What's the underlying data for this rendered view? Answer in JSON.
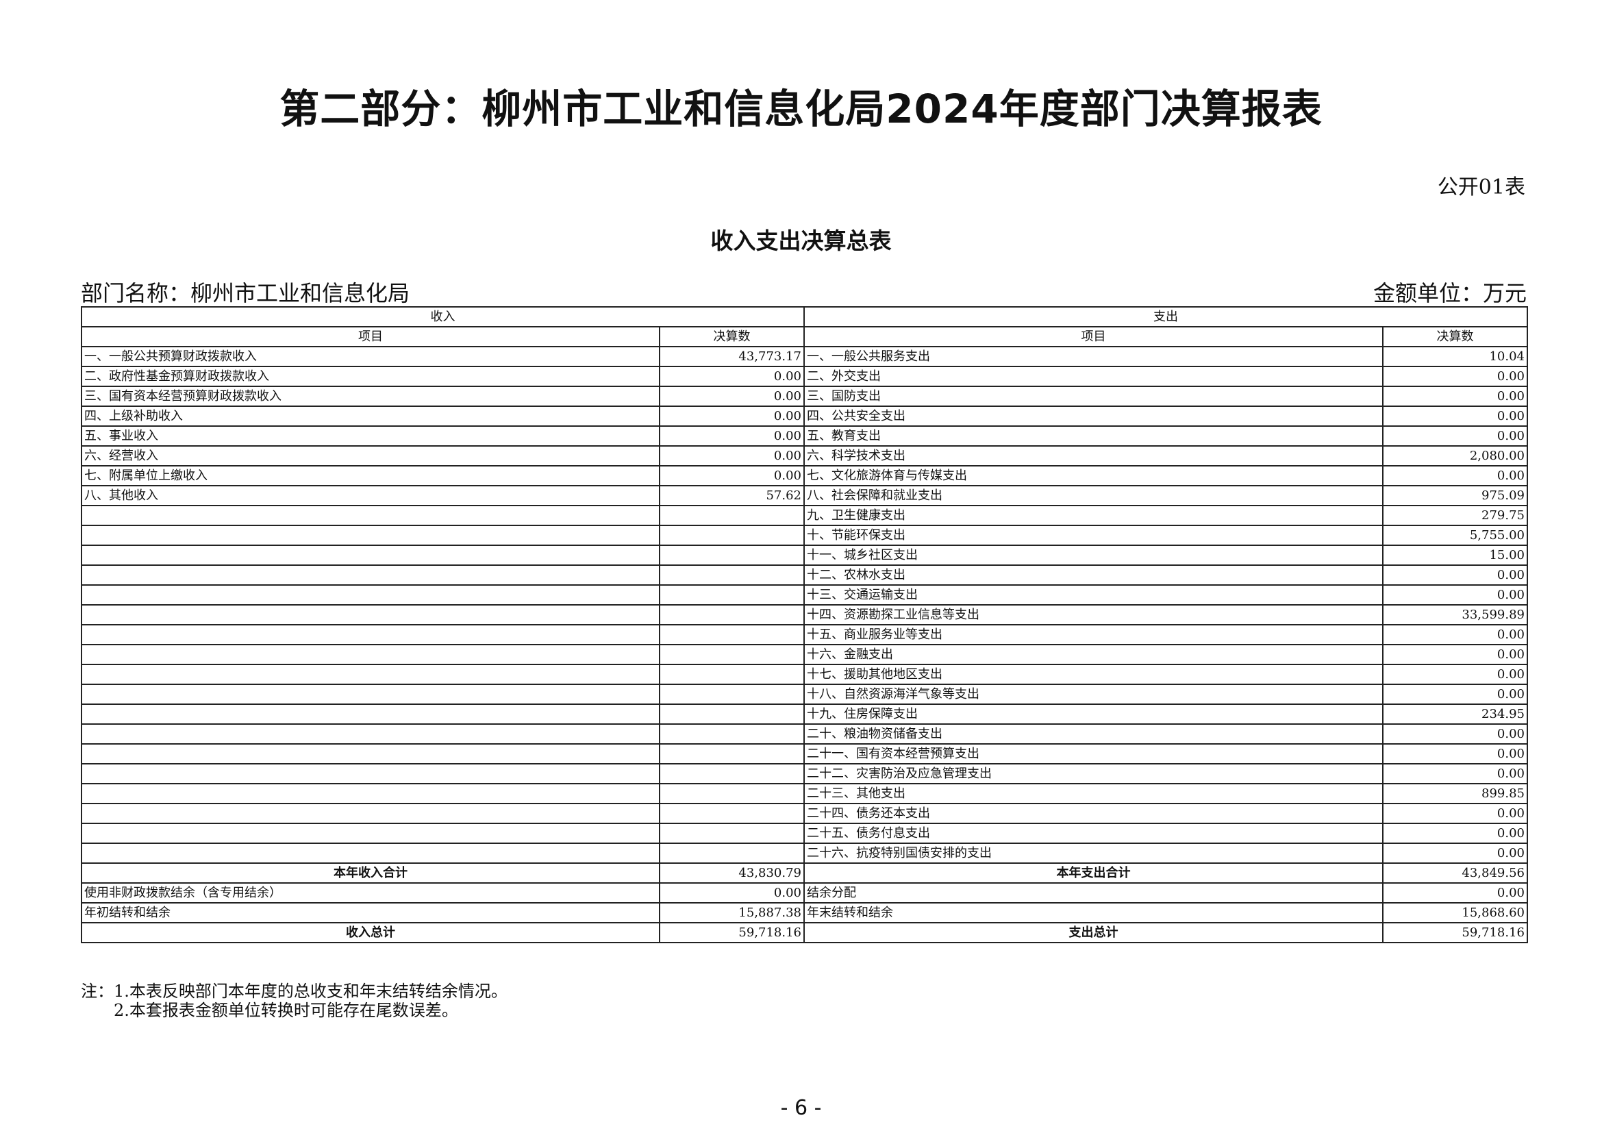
{
  "title": "第二部分：柳州市工业和信息化局2024年度部门决算报表",
  "form_no": "公开01表",
  "subtitle": "收入支出决算总表",
  "dept_name": "部门名称：柳州市工业和信息化局",
  "unit": "金额单位：万元",
  "table": {
    "income_header": "收入",
    "expense_header": "支出",
    "col_item": "项目",
    "col_amount": "决算数",
    "rows": [
      {
        "in_item": "一、一般公共预算财政拨款收入",
        "in_val": "43,773.17",
        "out_item": "一、一般公共服务支出",
        "out_val": "10.04"
      },
      {
        "in_item": "二、政府性基金预算财政拨款收入",
        "in_val": "0.00",
        "out_item": "二、外交支出",
        "out_val": "0.00"
      },
      {
        "in_item": "三、国有资本经营预算财政拨款收入",
        "in_val": "0.00",
        "out_item": "三、国防支出",
        "out_val": "0.00"
      },
      {
        "in_item": "四、上级补助收入",
        "in_val": "0.00",
        "out_item": "四、公共安全支出",
        "out_val": "0.00"
      },
      {
        "in_item": "五、事业收入",
        "in_val": "0.00",
        "out_item": "五、教育支出",
        "out_val": "0.00"
      },
      {
        "in_item": "六、经营收入",
        "in_val": "0.00",
        "out_item": "六、科学技术支出",
        "out_val": "2,080.00"
      },
      {
        "in_item": "七、附属单位上缴收入",
        "in_val": "0.00",
        "out_item": "七、文化旅游体育与传媒支出",
        "out_val": "0.00"
      },
      {
        "in_item": "八、其他收入",
        "in_val": "57.62",
        "out_item": "八、社会保障和就业支出",
        "out_val": "975.09"
      },
      {
        "in_item": "",
        "in_val": "",
        "out_item": "九、卫生健康支出",
        "out_val": "279.75"
      },
      {
        "in_item": "",
        "in_val": "",
        "out_item": "十、节能环保支出",
        "out_val": "5,755.00"
      },
      {
        "in_item": "",
        "in_val": "",
        "out_item": "十一、城乡社区支出",
        "out_val": "15.00"
      },
      {
        "in_item": "",
        "in_val": "",
        "out_item": "十二、农林水支出",
        "out_val": "0.00"
      },
      {
        "in_item": "",
        "in_val": "",
        "out_item": "十三、交通运输支出",
        "out_val": "0.00"
      },
      {
        "in_item": "",
        "in_val": "",
        "out_item": "十四、资源勘探工业信息等支出",
        "out_val": "33,599.89"
      },
      {
        "in_item": "",
        "in_val": "",
        "out_item": "十五、商业服务业等支出",
        "out_val": "0.00"
      },
      {
        "in_item": "",
        "in_val": "",
        "out_item": "十六、金融支出",
        "out_val": "0.00"
      },
      {
        "in_item": "",
        "in_val": "",
        "out_item": "十七、援助其他地区支出",
        "out_val": "0.00"
      },
      {
        "in_item": "",
        "in_val": "",
        "out_item": "十八、自然资源海洋气象等支出",
        "out_val": "0.00"
      },
      {
        "in_item": "",
        "in_val": "",
        "out_item": "十九、住房保障支出",
        "out_val": "234.95"
      },
      {
        "in_item": "",
        "in_val": "",
        "out_item": "二十、粮油物资储备支出",
        "out_val": "0.00"
      },
      {
        "in_item": "",
        "in_val": "",
        "out_item": "二十一、国有资本经营预算支出",
        "out_val": "0.00"
      },
      {
        "in_item": "",
        "in_val": "",
        "out_item": "二十二、灾害防治及应急管理支出",
        "out_val": "0.00"
      },
      {
        "in_item": "",
        "in_val": "",
        "out_item": "二十三、其他支出",
        "out_val": "899.85"
      },
      {
        "in_item": "",
        "in_val": "",
        "out_item": "二十四、债务还本支出",
        "out_val": "0.00"
      },
      {
        "in_item": "",
        "in_val": "",
        "out_item": "二十五、债务付息支出",
        "out_val": "0.00"
      },
      {
        "in_item": "",
        "in_val": "",
        "out_item": "二十六、抗疫特别国债安排的支出",
        "out_val": "0.00"
      },
      {
        "in_item": "本年收入合计",
        "in_val": "43,830.79",
        "out_item": "本年支出合计",
        "out_val": "43,849.56",
        "bold": true
      },
      {
        "in_item": "使用非财政拨款结余（含专用结余）",
        "in_val": "0.00",
        "out_item": "结余分配",
        "out_val": "0.00"
      },
      {
        "in_item": "年初结转和结余",
        "in_val": "15,887.38",
        "out_item": "年末结转和结余",
        "out_val": "15,868.60"
      },
      {
        "in_item": "收入总计",
        "in_val": "59,718.16",
        "out_item": "支出总计",
        "out_val": "59,718.16",
        "bold": true
      }
    ]
  },
  "notes": [
    "注：1.本表反映部门本年度的总收支和年末结转结余情况。",
    "2.本套报表金额单位转换时可能存在尾数误差。"
  ],
  "page_number": "- 6 -"
}
